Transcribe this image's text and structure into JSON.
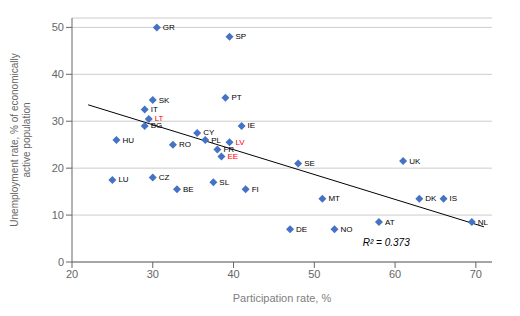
{
  "chart_data": {
    "type": "scatter",
    "xlabel": "Participation rate, %",
    "ylabel": "Unemployment rate, % of economically\nactive population",
    "xlim": [
      20,
      72
    ],
    "ylim": [
      0,
      52
    ],
    "xticks": [
      20,
      30,
      40,
      50,
      60,
      70
    ],
    "yticks": [
      0,
      10,
      20,
      30,
      40,
      50
    ],
    "grid": "y",
    "color": "#4472C4",
    "marker": "diamond",
    "points": [
      {
        "label": "GR",
        "x": 30.5,
        "y": 50,
        "label_color": "black"
      },
      {
        "label": "SP",
        "x": 39.5,
        "y": 48,
        "label_color": "black"
      },
      {
        "label": "SK",
        "x": 30,
        "y": 34.5,
        "label_color": "black"
      },
      {
        "label": "IT",
        "x": 29,
        "y": 32.5,
        "label_color": "black"
      },
      {
        "label": "LT",
        "x": 29.5,
        "y": 30.5,
        "label_color": "red"
      },
      {
        "label": "BG",
        "x": 29,
        "y": 29,
        "label_color": "black"
      },
      {
        "label": "HU",
        "x": 25.5,
        "y": 26,
        "label_color": "black"
      },
      {
        "label": "PT",
        "x": 39,
        "y": 35,
        "label_color": "black"
      },
      {
        "label": "CY",
        "x": 35.5,
        "y": 27.5,
        "label_color": "black"
      },
      {
        "label": "IE",
        "x": 41,
        "y": 29,
        "label_color": "black"
      },
      {
        "label": "PL",
        "x": 36.5,
        "y": 26,
        "label_color": "black"
      },
      {
        "label": "LV",
        "x": 39.5,
        "y": 25.5,
        "label_color": "red"
      },
      {
        "label": "RO",
        "x": 32.5,
        "y": 25,
        "label_color": "black"
      },
      {
        "label": "FR",
        "x": 38,
        "y": 24,
        "label_color": "black"
      },
      {
        "label": "EE",
        "x": 38.5,
        "y": 22.5,
        "label_color": "red"
      },
      {
        "label": "LU",
        "x": 25,
        "y": 17.5,
        "label_color": "black"
      },
      {
        "label": "CZ",
        "x": 30,
        "y": 18,
        "label_color": "black"
      },
      {
        "label": "BE",
        "x": 33,
        "y": 15.5,
        "label_color": "black"
      },
      {
        "label": "SL",
        "x": 37.5,
        "y": 17,
        "label_color": "black"
      },
      {
        "label": "FI",
        "x": 41.5,
        "y": 15.5,
        "label_color": "black"
      },
      {
        "label": "SE",
        "x": 48,
        "y": 21,
        "label_color": "black"
      },
      {
        "label": "UK",
        "x": 61,
        "y": 21.5,
        "label_color": "black"
      },
      {
        "label": "MT",
        "x": 51,
        "y": 13.5,
        "label_color": "black"
      },
      {
        "label": "DE",
        "x": 47,
        "y": 7,
        "label_color": "black"
      },
      {
        "label": "NO",
        "x": 52.5,
        "y": 7,
        "label_color": "black"
      },
      {
        "label": "AT",
        "x": 58,
        "y": 8.5,
        "label_color": "black"
      },
      {
        "label": "DK",
        "x": 63,
        "y": 13.5,
        "label_color": "black"
      },
      {
        "label": "IS",
        "x": 66,
        "y": 13.5,
        "label_color": "black"
      },
      {
        "label": "NL",
        "x": 69.5,
        "y": 8.5,
        "label_color": "black"
      }
    ],
    "trendline": {
      "x": [
        22,
        71
      ],
      "y": [
        33.5,
        7.5
      ],
      "color": "black"
    },
    "annotation": {
      "text": "R² = 0.373",
      "x": 56,
      "y": 3.0
    }
  }
}
